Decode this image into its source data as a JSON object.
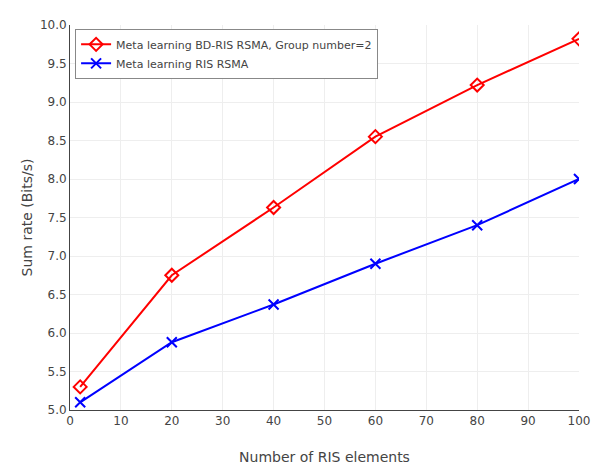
{
  "chart_data": {
    "type": "line",
    "x_label": "Number of RIS elements",
    "y_label": "Sum rate (Bits/s)",
    "series": [
      {
        "name": "Meta learning BD-RIS RSMA, Group number=2",
        "color": "#FF0000",
        "marker": "diamond",
        "line_style": "solid",
        "x": [
          2,
          20,
          40,
          60,
          80,
          100
        ],
        "values": [
          5.3,
          6.75,
          7.63,
          8.55,
          9.22,
          9.82
        ]
      },
      {
        "name": "Meta learning RIS RSMA",
        "color": "#0000FF",
        "marker": "x",
        "line_style": "solid",
        "x": [
          2,
          20,
          40,
          60,
          80,
          100
        ],
        "values": [
          5.1,
          5.88,
          6.37,
          6.9,
          7.4,
          8.0
        ]
      }
    ],
    "xlim": [
      0,
      100
    ],
    "ylim": [
      5,
      10
    ],
    "xticks": [
      0,
      10,
      20,
      30,
      40,
      50,
      60,
      70,
      80,
      90,
      100
    ],
    "yticks": [
      {
        "value": 5,
        "label": "5.0"
      },
      5.5,
      {
        "value": 6,
        "label": "6.0"
      },
      6.5,
      {
        "value": 7,
        "label": "7.0"
      },
      7.5,
      {
        "value": 8,
        "label": "8.0"
      },
      8.5,
      {
        "value": 9,
        "label": "9.0"
      },
      9.5,
      {
        "value": 10,
        "label": "10.0"
      }
    ],
    "grid": true,
    "legend": "upper left"
  }
}
